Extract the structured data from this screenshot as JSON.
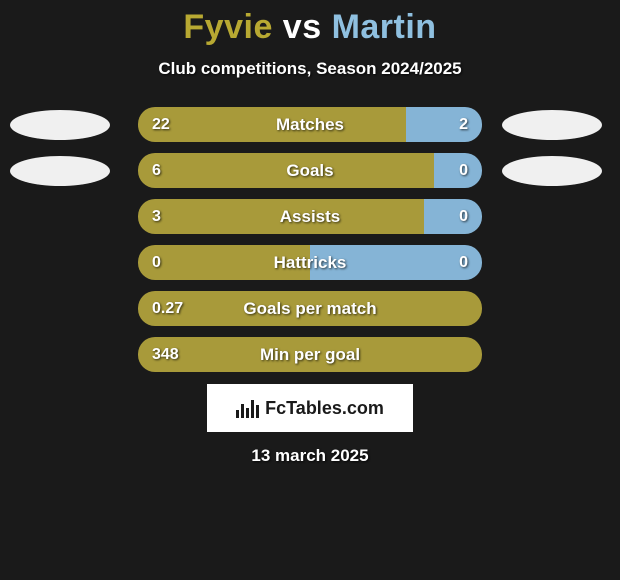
{
  "colors": {
    "background": "#1a1a1a",
    "accent_a": "#a89a3a",
    "accent_b": "#85b4d6",
    "title_a": "#b8a932",
    "title_b": "#8fc0e0",
    "text": "#ffffff",
    "avatar_bg": "#f0f0f0",
    "logo_bg": "#ffffff",
    "logo_fg": "#1a1a1a"
  },
  "header": {
    "player_a": "Fyvie",
    "vs": " vs ",
    "player_b": "Martin",
    "subtitle": "Club competitions, Season 2024/2025"
  },
  "stats": [
    {
      "label": "Matches",
      "a": "22",
      "b": "2",
      "split": 78,
      "show_avatars": true
    },
    {
      "label": "Goals",
      "a": "6",
      "b": "0",
      "split": 86,
      "show_avatars": true
    },
    {
      "label": "Assists",
      "a": "3",
      "b": "0",
      "split": 83,
      "show_avatars": false
    },
    {
      "label": "Hattricks",
      "a": "0",
      "b": "0",
      "split": 50,
      "show_avatars": false
    },
    {
      "label": "Goals per match",
      "a": "0.27",
      "b": "",
      "split": 100,
      "show_avatars": false
    },
    {
      "label": "Min per goal",
      "a": "348",
      "b": "",
      "split": 100,
      "show_avatars": false
    }
  ],
  "footer": {
    "brand": "FcTables.com",
    "date": "13 march 2025"
  }
}
